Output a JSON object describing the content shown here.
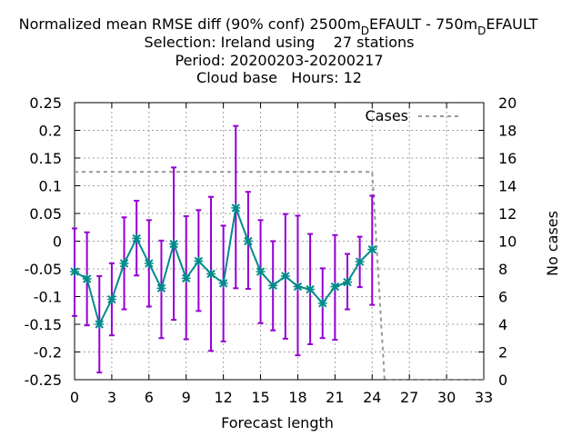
{
  "chart_data": {
    "type": "line",
    "title_lines": [
      "Normalized mean RMSE diff (90% conf) 2500m_DEFAULT - 750m_DEFAULT",
      "Selection: Ireland using    27 stations",
      "Period: 20200203-20200217",
      "Cloud base   Hours: 12"
    ],
    "title_parts": {
      "line1_a": "Normalized mean RMSE diff (90% conf) 2500m",
      "line1_sub1": "D",
      "line1_b": "EFAULT - 750m",
      "line1_sub2": "D",
      "line1_c": "EFAULT"
    },
    "xlabel": "Forecast length",
    "ylabel": "",
    "y2label": "No cases",
    "xlim": [
      0,
      33
    ],
    "ylim": [
      -0.25,
      0.25
    ],
    "y2lim": [
      0,
      20
    ],
    "grid": true,
    "legend_position": "top-right",
    "x_ticks": [
      "0",
      "3",
      "6",
      "9",
      "12",
      "15",
      "18",
      "21",
      "24",
      "27",
      "30",
      "33"
    ],
    "y_ticks": [
      "0.25",
      "0.2",
      "0.15",
      "0.1",
      "0.05",
      "0",
      "-0.05",
      "-0.1",
      "-0.15",
      "-0.2",
      "-0.25"
    ],
    "y2_ticks": [
      "20",
      "18",
      "16",
      "14",
      "12",
      "10",
      "8",
      "6",
      "4",
      "2",
      "0"
    ],
    "series": [
      {
        "name": "",
        "color": "#008b8b",
        "error_color": "#9400d3",
        "x": [
          0,
          1,
          2,
          3,
          4,
          5,
          6,
          7,
          8,
          9,
          10,
          11,
          12,
          13,
          14,
          15,
          16,
          17,
          18,
          19,
          20,
          21,
          22,
          23,
          24
        ],
        "y": [
          -0.055,
          -0.068,
          -0.15,
          -0.105,
          -0.04,
          0.005,
          -0.04,
          -0.085,
          -0.005,
          -0.067,
          -0.036,
          -0.059,
          -0.076,
          0.06,
          0.0,
          -0.055,
          -0.08,
          -0.063,
          -0.082,
          -0.087,
          -0.112,
          -0.082,
          -0.074,
          -0.037,
          -0.015
        ],
        "err_low": [
          -0.135,
          -0.152,
          -0.237,
          -0.17,
          -0.123,
          -0.062,
          -0.118,
          -0.175,
          -0.142,
          -0.177,
          -0.126,
          -0.198,
          -0.181,
          -0.085,
          -0.086,
          -0.148,
          -0.161,
          -0.176,
          -0.206,
          -0.186,
          -0.175,
          -0.178,
          -0.123,
          -0.083,
          -0.115
        ],
        "err_high": [
          0.023,
          0.016,
          -0.063,
          -0.04,
          0.043,
          0.073,
          0.038,
          0.001,
          0.133,
          0.045,
          0.056,
          0.08,
          0.028,
          0.208,
          0.089,
          0.038,
          0.0,
          0.049,
          0.046,
          0.013,
          -0.049,
          0.011,
          -0.023,
          0.008,
          0.082
        ]
      },
      {
        "name": "Cases",
        "color": "#999999",
        "axis": "y2",
        "x": [
          0,
          24,
          25,
          33
        ],
        "y": [
          15,
          15,
          0,
          0
        ]
      }
    ]
  }
}
